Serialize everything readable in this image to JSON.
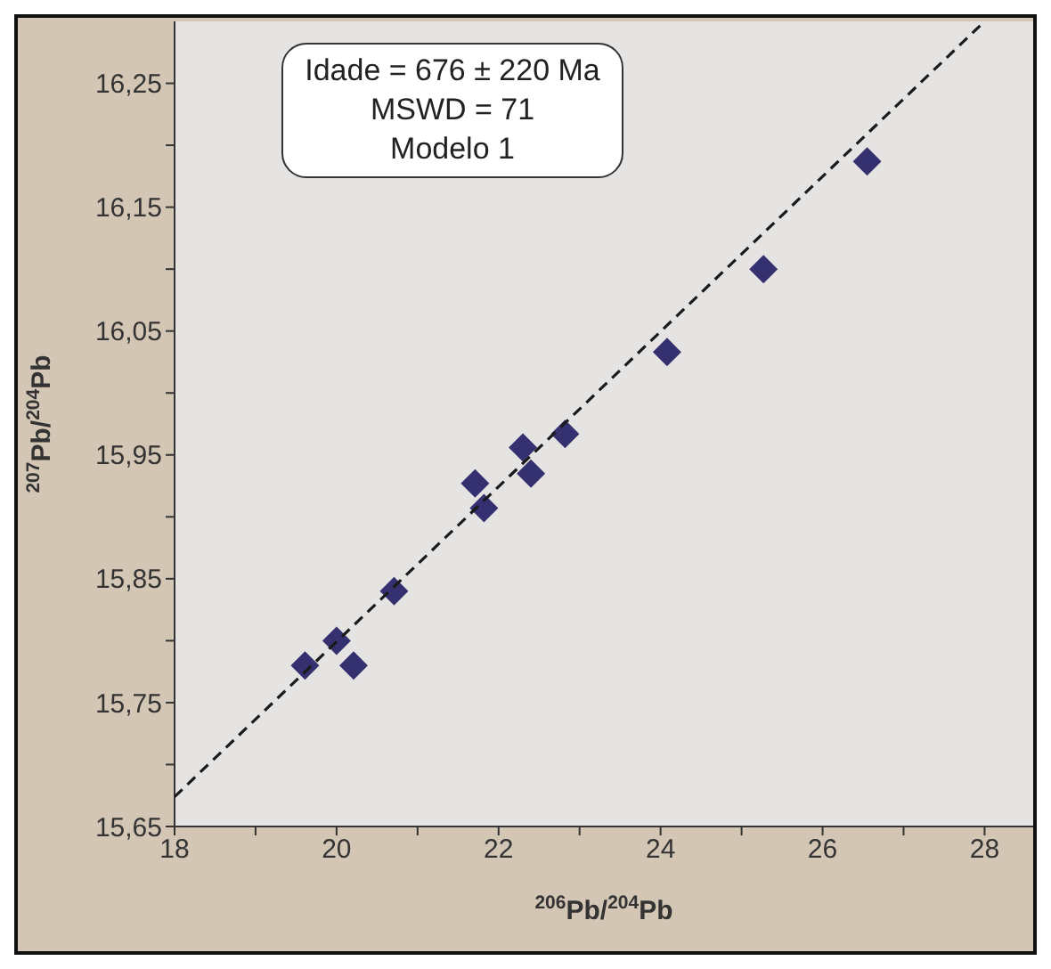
{
  "chart_data": {
    "type": "scatter",
    "xlabel": "$^{206}$Pb/$^{204}$Pb",
    "ylabel": "$^{207}$Pb/$^{204}$Pb",
    "annotations": [
      "Idade = 676 ± 220 Ma",
      "MSWD = 71",
      "Modelo 1"
    ],
    "xlim": [
      18,
      28.6
    ],
    "ylim": [
      15.65,
      16.3
    ],
    "xticks": [
      18,
      {
        "value": 19,
        "label": null
      },
      20,
      {
        "value": 21,
        "label": null
      },
      22,
      {
        "value": 23,
        "label": null
      },
      24,
      {
        "value": 25,
        "label": null
      },
      26,
      {
        "value": 27,
        "label": null
      },
      28
    ],
    "yticks": [
      {
        "value": 15.65,
        "label": "15,65"
      },
      {
        "value": 15.7,
        "label": null
      },
      {
        "value": 15.75,
        "label": "15,75"
      },
      {
        "value": 15.8,
        "label": null
      },
      {
        "value": 15.85,
        "label": "15,85"
      },
      {
        "value": 15.9,
        "label": null
      },
      {
        "value": 15.95,
        "label": "15,95"
      },
      {
        "value": 16.0,
        "label": null
      },
      {
        "value": 16.05,
        "label": "16,05"
      },
      {
        "value": 16.1,
        "label": null
      },
      {
        "value": 16.15,
        "label": "16,15"
      },
      {
        "value": 16.2,
        "label": null
      },
      {
        "value": 16.25,
        "label": "16,25"
      }
    ],
    "grid": false,
    "legend": false,
    "marker": "diamond",
    "series": [
      {
        "color": "#353070",
        "x": [
          19.61,
          20.0,
          20.21,
          20.71,
          21.71,
          21.82,
          22.3,
          22.4,
          22.82,
          24.08,
          25.27,
          26.55
        ],
        "values": [
          15.78,
          15.8,
          15.78,
          15.84,
          15.927,
          15.907,
          15.956,
          15.935,
          15.967,
          16.033,
          16.1,
          16.187
        ]
      },
      {
        "type": "line",
        "color": "#1a1a1a",
        "line_style": "dashed",
        "marker": "none",
        "x": [
          18,
          28
        ],
        "values": [
          15.674,
          16.3
        ]
      }
    ]
  }
}
